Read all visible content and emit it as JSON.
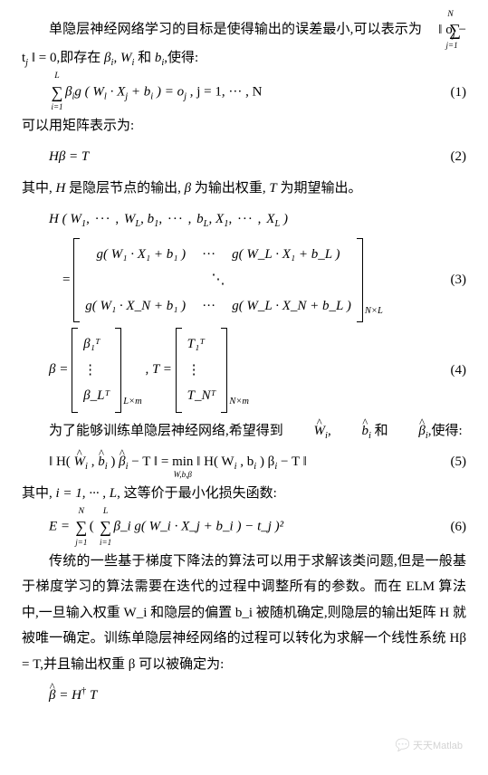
{
  "p1a": "单隐层神经网络学习的目标是使得输出的误差最小,可以表示为",
  "p1b": ",即存在 ",
  "p1c": " 和 ",
  "p1d": ",使得:",
  "inline_sum_top": "N",
  "inline_sum_bot": "j=1",
  "inline_norm": "‖ o",
  "inline_j": "j",
  "inline_minus": " − t",
  "inline_close": " ‖ = 0",
  "beta_i": "β",
  "i_sub": "i",
  "comma": ", ",
  "W_i": "W",
  "and": " 和 ",
  "b_i": "b",
  "eq1_sum_top": "L",
  "eq1_sum_bot": "i=1",
  "eq1_body1a": "β",
  "eq1_body1b": "g ( W",
  "eq1_l": "l",
  "eq1_dot": " · X",
  "eq1_j": "j",
  "eq1_plus": " + b",
  "eq1_cl": " ) = o",
  "eq1_tail": " , j = 1, ··· , N",
  "eq1_num": "(1)",
  "p2": "可以用矩阵表示为:",
  "eq2_body": "Hβ = T",
  "eq2_num": "(2)",
  "p3a": "其中, ",
  "p3_H": "H",
  "p3b": " 是隐层节点的输出, ",
  "p3_beta": "β",
  "p3c": " 为输出权重, ",
  "p3_T": "T",
  "p3d": " 为期望输出。",
  "eq3_head": "H ( W",
  "eq3_1": "1",
  "eq3_dots": ", ··· , ",
  "eq3_WL": "W",
  "eq3_L": "L",
  "eq3_b1": "b",
  "eq3_bL": "b",
  "eq3_X1": "X",
  "eq3_XL": "X",
  "eq3_close": " )",
  "m11": "g( W₁ · X₁ + b₁ )",
  "m12": "···",
  "m13": "g( W_L · X₁ + b_L )",
  "m21": "⋱",
  "m31": "g( W₁ · X_N + b₁ )",
  "m32": "···",
  "m33": "g( W_L · X_N + b_L )",
  "m_sub_NL": "N×L",
  "eq3_num": "(3)",
  "eq4_bhead": "β = ",
  "b_top": "β₁ᵀ",
  "b_mid": "⋮",
  "b_bot": "β_Lᵀ",
  "b_sub": "L×m",
  "eq4_T": " , T = ",
  "t_top": "T₁ᵀ",
  "t_mid": "⋮",
  "t_bot": "T_Nᵀ",
  "t_sub": "N×m",
  "eq4_num": "(4)",
  "p4a": "为了能够训练单隐层神经网络,希望得到 ",
  "p4_W": "W",
  "p4_b": "b",
  "p4_beta": "β",
  "p4b": ",使得:",
  "eq5_lhs": "‖ H( ",
  "eq5_W": "W",
  "eq5_c1": " , ",
  "eq5_b": "b",
  "eq5_c2": " ) ",
  "eq5_beta": "β",
  "eq5_mid": " − T ‖ = ",
  "eq5_min": "min",
  "eq5_minsub": "W,b,β",
  "eq5_rhs": " ‖ H( W",
  "eq5_c3": " , b",
  "eq5_c4": " ) β",
  "eq5_tail": " − T ‖",
  "eq5_num": "(5)",
  "p5a": "其中, ",
  "p5_i": "i = 1, ··· , L",
  "p5b": ", 这等价于最小化损失函数:",
  "eq6_E": "E = ",
  "eq6_sum1_top": "N",
  "eq6_sum1_bot": "j=1",
  "eq6_po": "( ",
  "eq6_sum2_top": "L",
  "eq6_sum2_bot": "i=1",
  "eq6_body": "β_i g( W_i · X_j + b_i ) − t_j )²",
  "eq6_num": "(6)",
  "p6": "传统的一些基于梯度下降法的算法可以用于求解该类问题,但是一般基于梯度学习的算法需要在迭代的过程中调整所有的参数。而在 ELM 算法中,一旦输入权重 W_i 和隐层的偏置 b_i 被随机确定,则隐层的输出矩阵 H 就被唯一确定。训练单隐层神经网络的过程可以转化为求解一个线性系统 Hβ = T,并且输出权重 β 可以被确定为:",
  "eq7_body1": "β",
  "eq7_body2": " = H",
  "eq7_dag": "†",
  "eq7_body3": " T",
  "wm": "天天Matlab"
}
